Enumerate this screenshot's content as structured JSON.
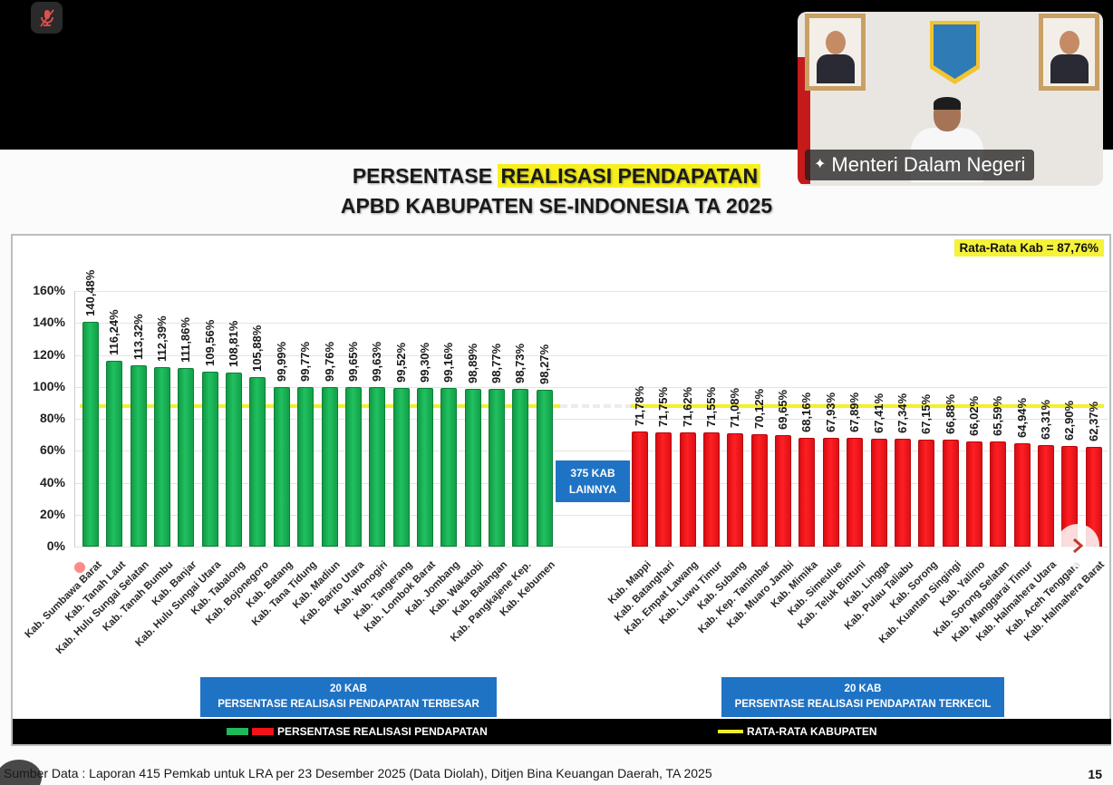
{
  "meeting": {
    "mute_icon": "mic-off-icon",
    "speaker_name": "Menteri Dalam Negeri",
    "speaker_pin_icon": "pin-icon"
  },
  "slide": {
    "title_line1_pre": "PERSENTASE ",
    "title_line1_highlight": "REALISASI PENDAPATAN",
    "title_line2": "APBD KABUPATEN SE-INDONESIA TA 2025",
    "average_badge": "Rata-Rata Kab = 87,76%",
    "middle_box_line1": "375 KAB",
    "middle_box_line2": "LAINNYA",
    "top_group_line1": "20 KAB",
    "top_group_line2": "PERSENTASE REALISASI PENDAPATAN TERBESAR",
    "bottom_group_line1": "20 KAB",
    "bottom_group_line2": "PERSENTASE REALISASI PENDAPATAN TERKECIL",
    "legend_bars": "PERSENTASE REALISASI PENDAPATAN",
    "legend_line": "RATA-RATA KABUPATEN",
    "source": "Sumber Data : Laporan 415 Pemkab untuk LRA per 23 Desember 2025 (Data Diolah), Ditjen Bina Keuangan Daerah, TA 2025",
    "page_number": "15",
    "next_icon": "chevron-right-icon"
  },
  "colors": {
    "top_bars": "#1fb85a",
    "bottom_bars": "#f01419",
    "average_line": "#f4ef2a",
    "group_box": "#1f73c4",
    "highlight": "#f7f01e"
  },
  "chart_data": {
    "type": "bar",
    "title": "PERSENTASE REALISASI PENDAPATAN APBD KABUPATEN SE-INDONESIA TA 2025",
    "xlabel": "",
    "ylabel": "",
    "ylim": [
      0,
      160
    ],
    "yticks": [
      "0%",
      "20%",
      "40%",
      "60%",
      "80%",
      "100%",
      "120%",
      "140%",
      "160%"
    ],
    "grid": true,
    "legend": [
      "PERSENTASE REALISASI PENDAPATAN",
      "RATA-RATA KABUPATEN"
    ],
    "legend_position": "bottom",
    "reference_line": {
      "name": "RATA-RATA KABUPATEN",
      "value": 87.76,
      "label": "Rata-Rata Kab = 87,76%"
    },
    "annotation": "375 KAB LAINNYA",
    "series": [
      {
        "name": "20 KAB PERSENTASE REALISASI PENDAPATAN TERBESAR",
        "color": "green",
        "categories": [
          "Kab. Sumbawa Barat",
          "Kab. Tanah Laut",
          "Kab. Hulu Sungai Selatan",
          "Kab. Tanah Bumbu",
          "Kab. Banjar",
          "Kab. Hulu Sungai Utara",
          "Kab. Tabalong",
          "Kab. Bojonegoro",
          "Kab. Batang",
          "Kab. Tana Tidung",
          "Kab. Madiun",
          "Kab. Barito Utara",
          "Kab. Wonogiri",
          "Kab. Tangerang",
          "Kab. Lombok Barat",
          "Kab. Jombang",
          "Kab. Wakatobi",
          "Kab. Balangan",
          "Kab. Pangkajene Kep.",
          "Kab. Kebumen"
        ],
        "values": [
          140.48,
          116.24,
          113.32,
          112.39,
          111.86,
          109.56,
          108.81,
          105.88,
          99.99,
          99.77,
          99.76,
          99.65,
          99.63,
          99.52,
          99.3,
          99.16,
          98.89,
          98.77,
          98.73,
          98.27
        ],
        "labels": [
          "140,48%",
          "116,24%",
          "113,32%",
          "112,39%",
          "111,86%",
          "109,56%",
          "108,81%",
          "105,88%",
          "99,99%",
          "99,77%",
          "99,76%",
          "99,65%",
          "99,63%",
          "99,52%",
          "99,30%",
          "99,16%",
          "98,89%",
          "98,77%",
          "98,73%",
          "98,27%"
        ]
      },
      {
        "name": "20 KAB PERSENTASE REALISASI PENDAPATAN TERKECIL",
        "color": "red",
        "categories": [
          "Kab. Mappi",
          "Kab. Batanghari",
          "Kab. Empat Lawang",
          "Kab. Luwu Timur",
          "Kab. Subang",
          "Kab. Kep. Tanimbar",
          "Kab. Muaro Jambi",
          "Kab. Mimika",
          "Kab. Simeulue",
          "Kab. Teluk Bintuni",
          "Kab. Lingga",
          "Kab. Pulau Taliabu",
          "Kab. Sorong",
          "Kab. Kuantan Singingi",
          "Kab. Yalimo",
          "Kab. Sorong Selatan",
          "Kab. Manggarai Timur",
          "Kab. Halmahera Utara",
          "Kab. Aceh Tenggara",
          "Kab. Halmahera Barat"
        ],
        "values": [
          71.78,
          71.75,
          71.62,
          71.55,
          71.08,
          70.12,
          69.65,
          68.16,
          67.93,
          67.89,
          67.41,
          67.34,
          67.15,
          66.88,
          66.02,
          65.59,
          64.94,
          63.31,
          62.9,
          62.37
        ],
        "labels": [
          "71,78%",
          "71,75%",
          "71,62%",
          "71,55%",
          "71,08%",
          "70,12%",
          "69,65%",
          "68,16%",
          "67,93%",
          "67,89%",
          "67,41%",
          "67,34%",
          "67,15%",
          "66,88%",
          "66,02%",
          "65,59%",
          "64,94%",
          "63,31%",
          "62,90%",
          "62,37%"
        ]
      }
    ]
  }
}
